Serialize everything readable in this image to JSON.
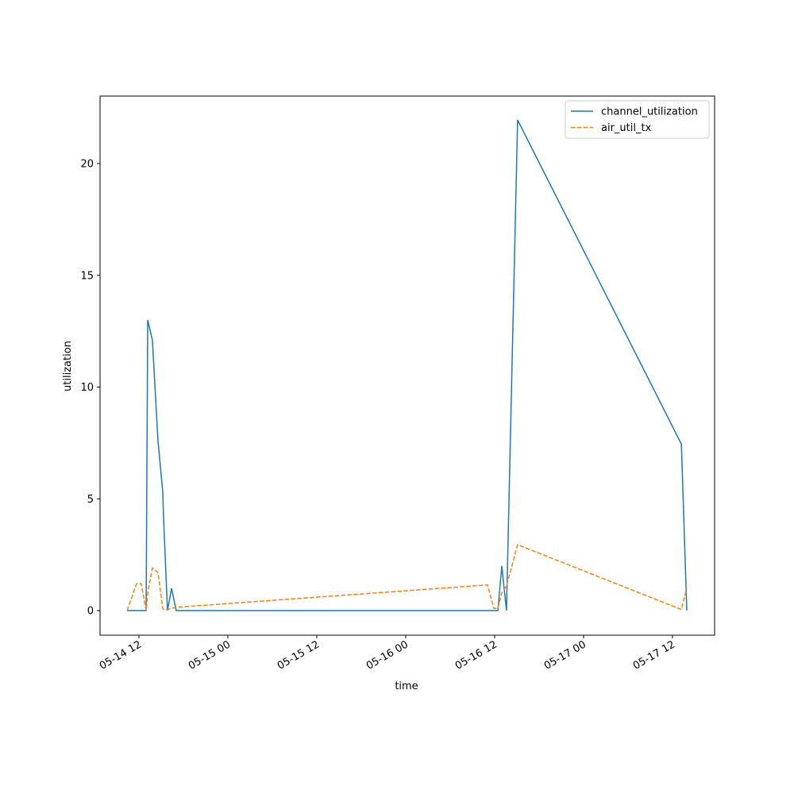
{
  "chart_data": {
    "type": "line",
    "x": [
      "05-14 10:24",
      "05-14 11:41",
      "05-14 12:19",
      "05-14 12:58",
      "05-14 13:11",
      "05-14 13:49",
      "05-14 14:34",
      "05-14 15:13",
      "05-14 15:19",
      "05-14 15:51",
      "05-14 16:24",
      "05-14 17:02",
      "05-16 11:02",
      "05-16 11:54",
      "05-16 12:26",
      "05-16 12:58",
      "05-16 13:36",
      "05-16 15:06",
      "05-17 13:12",
      "05-17 13:56"
    ],
    "series": [
      {
        "name": "channel_utilization",
        "color": "#1f77b4",
        "dash": "solid",
        "values": [
          0,
          0,
          0,
          0,
          13.0,
          12.1,
          7.6,
          5.3,
          4.2,
          0,
          1.0,
          0,
          0,
          0,
          0,
          2.0,
          0,
          21.95,
          7.45,
          0
        ]
      },
      {
        "name": "air_util_tx",
        "color": "#ff7f0e",
        "dash": "dashed",
        "values": [
          0,
          1.2,
          1.2,
          0,
          0.8,
          1.9,
          1.7,
          0.1,
          0.05,
          0.05,
          0.1,
          0.15,
          1.15,
          0.1,
          0.1,
          0.8,
          1.1,
          2.95,
          0.05,
          1.0
        ]
      }
    ],
    "xlabel": "time",
    "ylabel": "utilization",
    "xlim": [
      "05-14 06:45",
      "05-17 17:41"
    ],
    "xticks": [
      {
        "value": "05-14 12:00",
        "label": "05-14 12"
      },
      {
        "value": "05-15 00:00",
        "label": "05-15 00"
      },
      {
        "value": "05-15 12:00",
        "label": "05-15 12"
      },
      {
        "value": "05-16 00:00",
        "label": "05-16 00"
      },
      {
        "value": "05-16 12:00",
        "label": "05-16 12"
      },
      {
        "value": "05-17 00:00",
        "label": "05-17 00"
      },
      {
        "value": "05-17 12:00",
        "label": "05-17 12"
      }
    ],
    "ylim": [
      -1.1,
      23.02
    ],
    "yticks": [
      0,
      5,
      10,
      15,
      20
    ],
    "legend": "upper right"
  }
}
